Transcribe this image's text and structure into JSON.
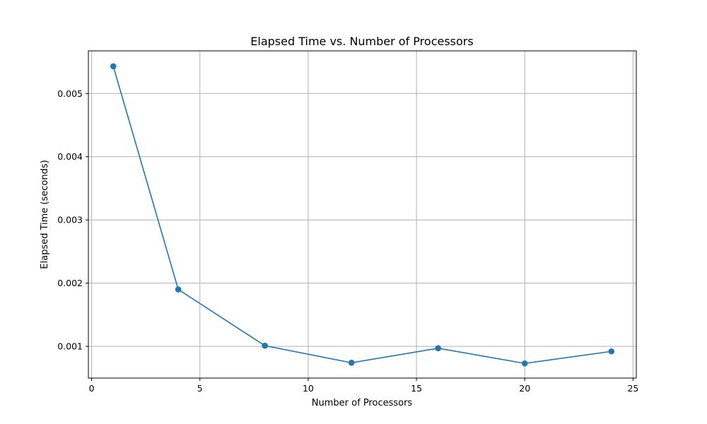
{
  "chart_data": {
    "type": "line",
    "title": "Elapsed Time vs. Number of Processors",
    "xlabel": "Number of Processors",
    "ylabel": "Elapsed Time (seconds)",
    "xlim": [
      -0.15,
      25.15
    ],
    "ylim": [
      0.000498,
      0.005674
    ],
    "xticks": [
      0,
      5,
      10,
      15,
      20,
      25
    ],
    "xtick_labels": [
      "0",
      "5",
      "10",
      "15",
      "20",
      "25"
    ],
    "yticks": [
      0.001,
      0.002,
      0.003,
      0.004,
      0.005
    ],
    "ytick_labels": [
      "0.001",
      "0.002",
      "0.003",
      "0.004",
      "0.005"
    ],
    "grid": true,
    "color": "#1f77b4",
    "series": [
      {
        "x": [
          1,
          4,
          8,
          12,
          16,
          20,
          24
        ],
        "values": [
          0.00543,
          0.0019,
          0.00101,
          0.00074,
          0.00097,
          0.00073,
          0.00092
        ]
      }
    ]
  }
}
